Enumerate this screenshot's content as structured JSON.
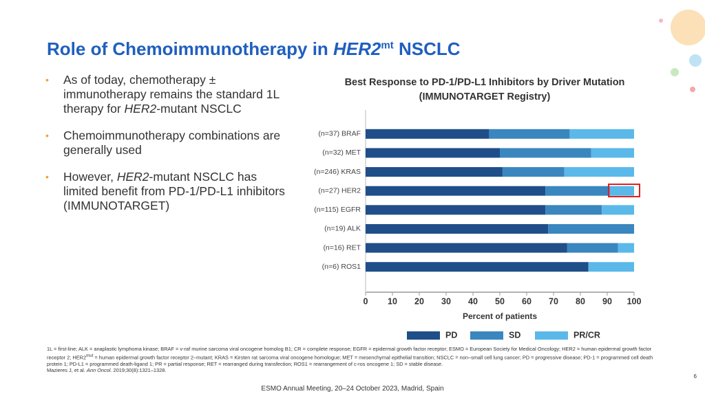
{
  "slide": {
    "title": [
      {
        "text": "Role of Chemoimmunotherapy in "
      },
      {
        "text": "HER2",
        "style": "italic"
      },
      {
        "text": "mt",
        "style": "sup"
      },
      {
        "text": " NSCLC"
      }
    ],
    "bullets": [
      [
        {
          "text": "As of today, chemotherapy ± immunotherapy remains the standard 1L therapy for "
        },
        {
          "text": "HER2",
          "style": "italic"
        },
        {
          "text": "-mutant NSCLC"
        }
      ],
      [
        {
          "text": "Chemoimmunotherapy combinations are generally used"
        }
      ],
      [
        {
          "text": "However, "
        },
        {
          "text": "HER2",
          "style": "italic"
        },
        {
          "text": "-mutant NSCLC has limited benefit from PD-1/PD-L1 inhibitors (IMMUNOTARGET)"
        }
      ]
    ],
    "footnotes": [
      [
        {
          "text": "1L = first-line; ALK = anaplastic lymphoma kinase; BRAF = v-raf murine sarcoma viral oncogene homolog B1; CR = complete response; EGFR = epidermal growth factor receptor; ESMO = European Society for Medical Oncology; HER2 = human epidermal growth factor receptor 2; HER2"
        },
        {
          "text": "mut",
          "style": "sup"
        },
        {
          "text": " = human epidermal growth factor receptor 2–mutant; KRAS = Kirsten rat sarcoma viral oncogene homologue; MET = mesenchymal epithelial transition; NSCLC = non–small cell lung cancer; PD = progressive disease; PD-1 = programmed cell death protein 1; PD-L1 = programmed death-ligand 1; PR = partial response; RET = rearranged during transfection; ROS1 = rearrangement of c-ros oncogene 1; SD = stable disease."
        }
      ],
      [
        {
          "text": "Mazieres J, et al. "
        },
        {
          "text": "Ann Oncol.",
          "style": "italic"
        },
        {
          "text": " 2019;30(8):1321–1328."
        }
      ]
    ],
    "footer": "ESMO Annual Meeting, 20–24 October 2023, Madrid, Spain",
    "page_number": "6"
  },
  "chart_data": {
    "type": "stacked_barh",
    "title": [
      "Best Response to PD-1/PD-L1 Inhibitors by Driver Mutation",
      "(IMMUNOTARGET Registry)"
    ],
    "xlabel": "Percent of patients",
    "categories": [
      "(n=37) BRAF",
      "(n=32) MET",
      "(n=246) KRAS",
      "(n=27) HER2",
      "(n=115) EGFR",
      "(n=19) ALK",
      "(n=16) RET",
      "(n=6) ROS1"
    ],
    "series": [
      {
        "name": "PD",
        "color": "#1f4e89",
        "values": [
          46,
          50,
          51,
          67,
          67,
          68,
          75,
          83
        ]
      },
      {
        "name": "SD",
        "color": "#3a86bf",
        "values": [
          30,
          34,
          23,
          24,
          21,
          32,
          19,
          0
        ]
      },
      {
        "name": "PR/CR",
        "color": "#5bb9e9",
        "values": [
          24,
          16,
          26,
          9,
          12,
          0,
          6,
          17
        ]
      }
    ],
    "xlim": [
      0,
      100
    ],
    "xticks": [
      0,
      10,
      20,
      30,
      40,
      50,
      60,
      70,
      80,
      90,
      100
    ]
  }
}
